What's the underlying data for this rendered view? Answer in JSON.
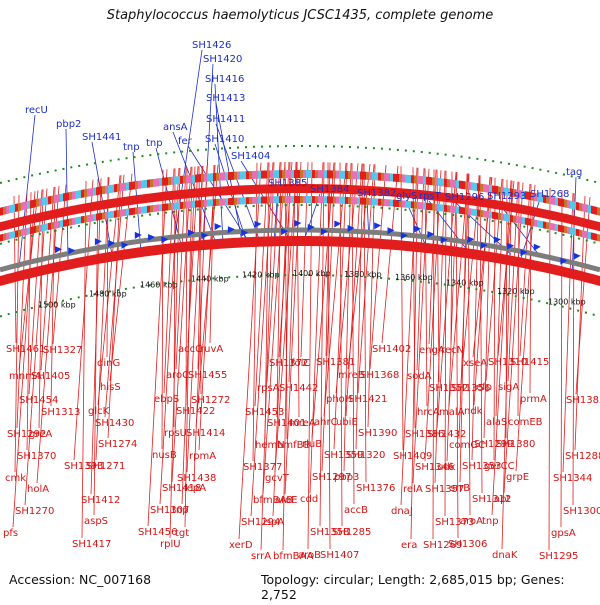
{
  "title": "Staphylococcus haemolyticus JCSC1435, complete genome",
  "footer": {
    "accession": "Accession: NC_007168",
    "summary": "Topology: circular; Length: 2,685,015 bp; Genes: 2,752"
  },
  "colors": {
    "forward_genes": "#e21d1d",
    "reverse_genes": "#e21d1d",
    "backbone": "#7d7d7d",
    "tick_marks": "#1f8a1f",
    "feature_arrows": "#1434e0",
    "gene_label_blue": "#1c2fc8",
    "gene_label_red": "#d41414"
  },
  "kbp_ticks": [
    "1500 kbp",
    "1480 kbp",
    "1460 kbp",
    "1440 kbp",
    "1420 kbp",
    "1400 kbp",
    "1380 kbp",
    "1360 kbp",
    "1340 kbp",
    "1320 kbp",
    "1300 kbp"
  ],
  "outer_labels": [
    "SH1426",
    "SH1420",
    "SH1416",
    "SH1413",
    "SH1411",
    "SH1410",
    "SH1404",
    "recU",
    "pbp2",
    "SH1441",
    "tnp",
    "tnp",
    "ansA",
    "fer",
    "SH1385",
    "SH1384",
    "SH1382",
    "glyS",
    "rpsT",
    "SH1296",
    "SH1293",
    "SH1268",
    "tag"
  ],
  "inner_labels": [
    "SH1461",
    "dinG",
    "SH1455",
    "SH1442",
    "ebpS",
    "SH1453",
    "ubiE",
    "SH1432",
    "rluB",
    "SH1409",
    "gerCC",
    "cmk",
    "srrB",
    "SH1412",
    "tnp",
    "ispA",
    "SH1456",
    "xerD",
    "SH1407",
    "recN",
    "SH1381",
    "sodA",
    "sigA",
    "SH1454",
    "ndk",
    "SH1430",
    "SH1414",
    "bmfBB",
    "nusB",
    "SH1377",
    "pbp3",
    "SH1357",
    "cdd",
    "dnaJ",
    "tnp",
    "pfs",
    "SH1306",
    "SH1295",
    "ruvA",
    "folC",
    "aroC",
    "rpsA",
    "SH1421",
    "malA",
    "ahrC",
    "SH1386",
    "SH1380",
    "SH1370",
    "SH1353",
    "SH1344",
    "lepA",
    "aroE",
    "SH1307",
    "SH1294",
    "SH1285",
    "SH1269",
    "aroB",
    "engA",
    "SH1415",
    "SH1405",
    "efp",
    "SH1383",
    "glcK",
    "mreA",
    "rpsU",
    "hemN",
    "SH1320",
    "udk",
    "SH1297",
    "relA",
    "apt",
    "SH1270",
    "aroA",
    "gpsA",
    "SH1417",
    "bfmBAA",
    "accC",
    "SH1372",
    "SH1368",
    "SH1356",
    "phoH",
    "hrcA",
    "comEB",
    "greA",
    "SH1299",
    "SH1288",
    "SH1271",
    "SH1438",
    "SH1418",
    "bfmBAB",
    "accB",
    "SH1373",
    "SH1358",
    "era",
    "dnaK",
    "SH1327",
    "SH1310",
    "mnmA",
    "hisS",
    "SH1272",
    "SH1422",
    "SH1401",
    "SH1390",
    "comGC",
    "SH1359",
    "SH1346",
    "grpE",
    "holA",
    "SH1312",
    "SH1300",
    "aspS",
    "tgt",
    "rplU",
    "srrA",
    "SH1402",
    "xseA",
    "mreB",
    "SH1352",
    "prmA",
    "SH1313",
    "alaS",
    "SH1292",
    "SH1274",
    "rpmA",
    "SH1393",
    "gcvT",
    "SH1376"
  ]
}
